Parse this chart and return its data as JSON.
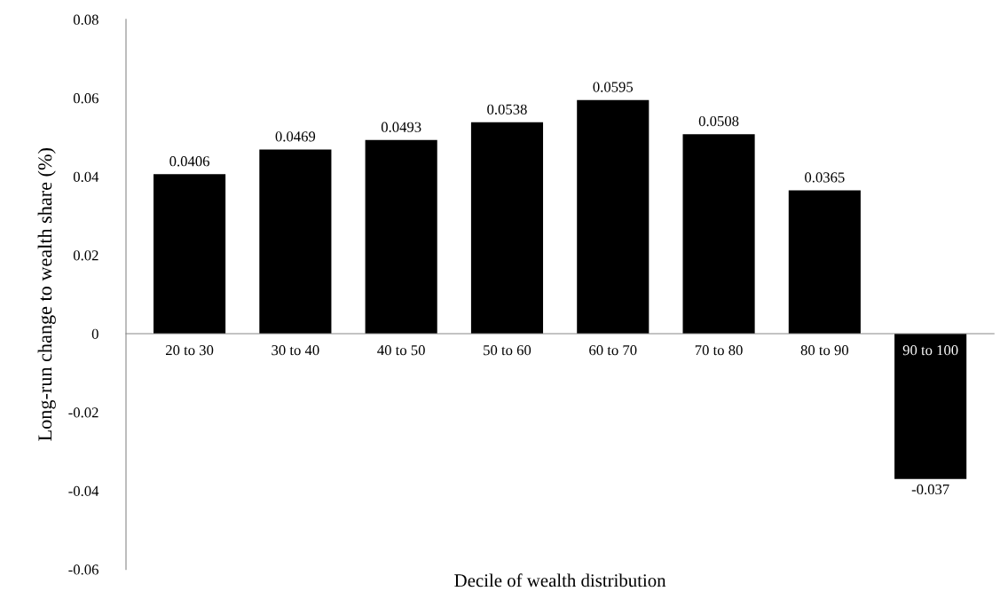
{
  "chart_data": {
    "type": "bar",
    "xlabel": "Decile of wealth distribution",
    "ylabel": "Long-run change to wealth share (%)",
    "categories": [
      "20 to 30",
      "30 to 40",
      "40 to 50",
      "50 to 60",
      "60 to 70",
      "70 to 80",
      "80 to 90",
      "90 to 100"
    ],
    "values": [
      0.0406,
      0.0469,
      0.0493,
      0.0538,
      0.0595,
      0.0508,
      0.0365,
      -0.037
    ],
    "color": "#000000",
    "data_labels": true,
    "ylim": [
      -0.06,
      0.08
    ],
    "yticks": [
      -0.06,
      -0.04,
      -0.02,
      0,
      0.02,
      0.04,
      0.06,
      0.08
    ],
    "grid": false,
    "legend": false
  }
}
